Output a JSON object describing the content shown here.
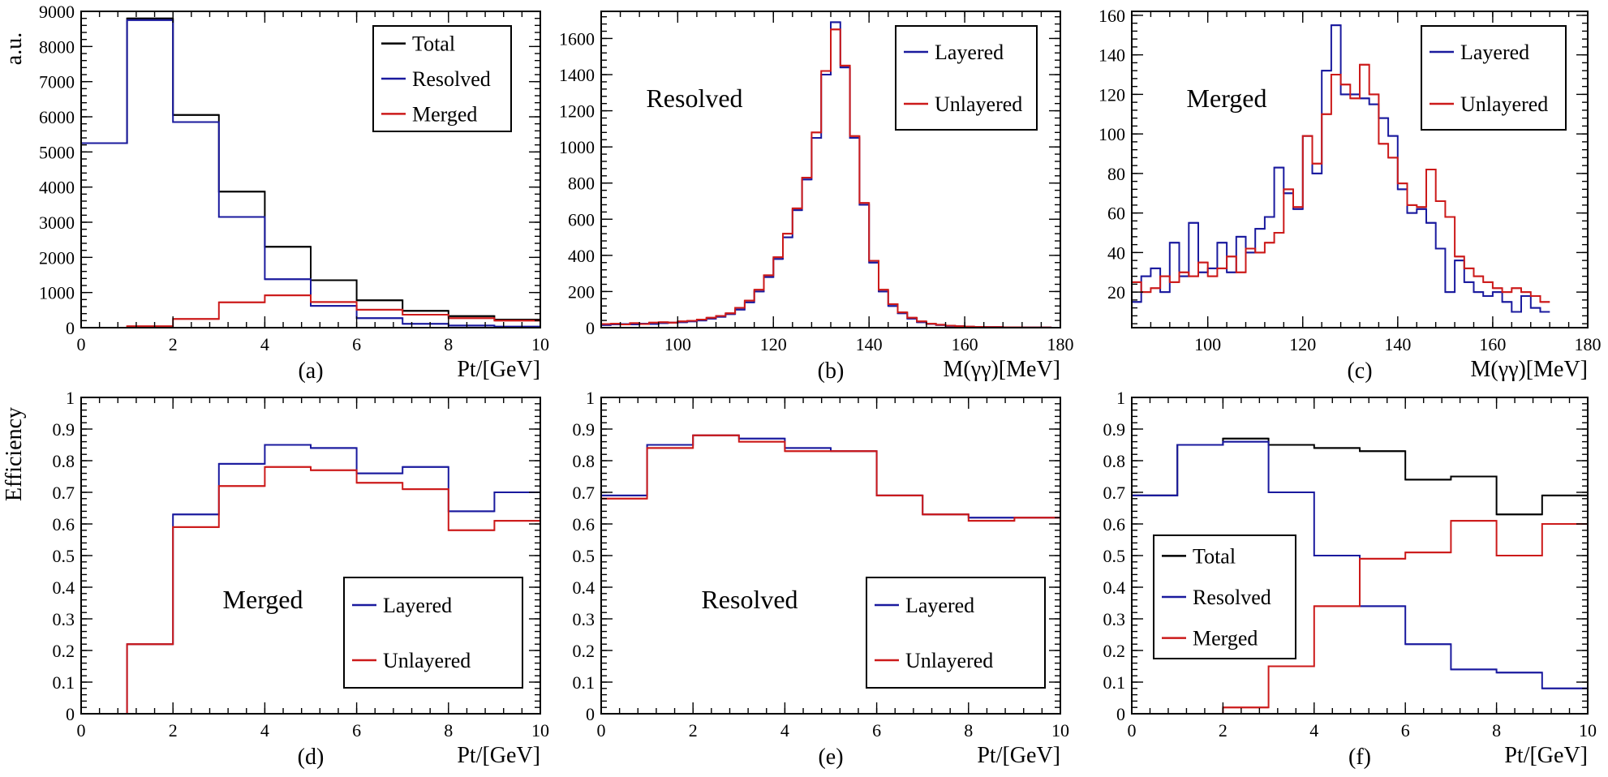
{
  "figure_ylabels": {
    "top": "a.u.",
    "bottom": "Efficiency"
  },
  "colors": {
    "total": "#000000",
    "resolved": "#1a1a9e",
    "merged": "#cc1a1a",
    "layered": "#1a1a9e",
    "unlayered": "#cc1a1a"
  },
  "chart_data": [
    {
      "id": "a",
      "type": "histogram",
      "panel_label": "(a)",
      "xlabel": "Pt/[GeV]",
      "ylabel": "a.u.",
      "xlim": [
        0,
        10
      ],
      "ylim": [
        0,
        9000
      ],
      "xticks": [
        0,
        2,
        4,
        6,
        8,
        10
      ],
      "xticklabels": [
        "0",
        "2",
        "4",
        "6",
        "8",
        "10"
      ],
      "yticks": [
        0,
        1000,
        2000,
        3000,
        4000,
        5000,
        6000,
        7000,
        8000,
        9000
      ],
      "yticklabels": [
        "0",
        "1000",
        "2000",
        "3000",
        "4000",
        "5000",
        "6000",
        "7000",
        "8000",
        "9000"
      ],
      "legend": {
        "position": "top-right"
      },
      "edges": [
        0,
        1,
        2,
        3,
        4,
        5,
        6,
        7,
        8,
        9,
        10
      ],
      "series": [
        {
          "name": "Total",
          "color_key": "total",
          "values": [
            5250,
            8800,
            6050,
            3870,
            2300,
            1350,
            780,
            480,
            330,
            230
          ]
        },
        {
          "name": "Resolved",
          "color_key": "resolved",
          "values": [
            5250,
            8750,
            5850,
            3150,
            1380,
            620,
            270,
            110,
            60,
            30
          ]
        },
        {
          "name": "Merged",
          "color_key": "merged",
          "values": [
            0,
            40,
            250,
            720,
            920,
            730,
            510,
            370,
            270,
            200
          ]
        }
      ]
    },
    {
      "id": "b",
      "type": "histogram",
      "panel_label": "(b)",
      "xlabel": "M(γγ)[MeV]",
      "inner_label": "Resolved",
      "xlim": [
        84,
        180
      ],
      "ylim": [
        0,
        1750
      ],
      "xticks": [
        100,
        120,
        140,
        160,
        180
      ],
      "xticklabels": [
        "100",
        "120",
        "140",
        "160",
        "180"
      ],
      "yticks": [
        0,
        200,
        400,
        600,
        800,
        1000,
        1200,
        1400,
        1600
      ],
      "yticklabels": [
        "0",
        "200",
        "400",
        "600",
        "800",
        "1000",
        "1200",
        "1400",
        "1600"
      ],
      "legend": {
        "position": "top-right"
      },
      "x_start": 84,
      "bin_width": 2,
      "series": [
        {
          "name": "Layered",
          "color_key": "layered",
          "values": [
            15,
            18,
            20,
            18,
            22,
            20,
            25,
            28,
            30,
            35,
            40,
            50,
            60,
            75,
            100,
            140,
            200,
            280,
            380,
            500,
            650,
            820,
            1050,
            1400,
            1690,
            1440,
            1050,
            680,
            360,
            200,
            120,
            80,
            50,
            30,
            20,
            15,
            10,
            8,
            5,
            4,
            3,
            3,
            2,
            2,
            1,
            1,
            1,
            0
          ]
        },
        {
          "name": "Unlayered",
          "color_key": "unlayered",
          "values": [
            20,
            22,
            18,
            25,
            20,
            28,
            30,
            28,
            35,
            38,
            45,
            55,
            65,
            80,
            110,
            150,
            210,
            290,
            390,
            520,
            660,
            830,
            1080,
            1420,
            1650,
            1450,
            1060,
            690,
            370,
            210,
            130,
            85,
            55,
            35,
            22,
            16,
            11,
            8,
            6,
            4,
            3,
            3,
            2,
            2,
            1,
            1,
            1,
            0
          ]
        }
      ]
    },
    {
      "id": "c",
      "type": "histogram",
      "panel_label": "(c)",
      "xlabel": "M(γγ)[MeV]",
      "inner_label": "Merged",
      "xlim": [
        84,
        180
      ],
      "ylim": [
        2,
        162
      ],
      "xticks": [
        100,
        120,
        140,
        160,
        180
      ],
      "xticklabels": [
        "100",
        "120",
        "140",
        "160",
        "180"
      ],
      "yticks": [
        20,
        40,
        60,
        80,
        100,
        120,
        140,
        160
      ],
      "yticklabels": [
        "20",
        "40",
        "60",
        "80",
        "100",
        "120",
        "140",
        "160"
      ],
      "legend": {
        "position": "top-right"
      },
      "x_start": 84,
      "bin_width": 2,
      "series": [
        {
          "name": "Layered",
          "color_key": "layered",
          "values": [
            15,
            28,
            32,
            20,
            45,
            28,
            55,
            30,
            32,
            45,
            30,
            48,
            40,
            52,
            58,
            83,
            70,
            62,
            99,
            80,
            132,
            155,
            120,
            120,
            118,
            115,
            108,
            99,
            72,
            60,
            62,
            55,
            42,
            20,
            36,
            25,
            20,
            18,
            20,
            15,
            10,
            18,
            12,
            10
          ]
        },
        {
          "name": "Unlayered",
          "color_key": "unlayered",
          "values": [
            25,
            20,
            22,
            28,
            25,
            30,
            28,
            35,
            28,
            32,
            38,
            30,
            42,
            40,
            45,
            50,
            72,
            63,
            99,
            85,
            110,
            130,
            125,
            118,
            135,
            120,
            95,
            88,
            75,
            64,
            63,
            82,
            66,
            58,
            38,
            32,
            28,
            25,
            22,
            20,
            22,
            20,
            18,
            15
          ]
        }
      ]
    },
    {
      "id": "d",
      "type": "histogram",
      "panel_label": "(d)",
      "xlabel": "Pt/[GeV]",
      "ylabel": "Efficiency",
      "inner_label": "Merged",
      "xlim": [
        0,
        10
      ],
      "ylim": [
        0,
        1
      ],
      "xticks": [
        0,
        2,
        4,
        6,
        8,
        10
      ],
      "xticklabels": [
        "0",
        "2",
        "4",
        "6",
        "8",
        "10"
      ],
      "yticks": [
        0,
        0.1,
        0.2,
        0.3,
        0.4,
        0.5,
        0.6,
        0.7,
        0.8,
        0.9,
        1
      ],
      "yticklabels": [
        "0",
        "0.1",
        "0.2",
        "0.3",
        "0.4",
        "0.5",
        "0.6",
        "0.7",
        "0.8",
        "0.9",
        "1"
      ],
      "legend": {
        "position": "bottom-right"
      },
      "edges": [
        0,
        1,
        2,
        3,
        4,
        5,
        6,
        7,
        8,
        9,
        10
      ],
      "series": [
        {
          "name": "Layered",
          "color_key": "layered",
          "values": [
            0,
            0.22,
            0.63,
            0.79,
            0.85,
            0.84,
            0.76,
            0.78,
            0.64,
            0.7
          ]
        },
        {
          "name": "Unlayered",
          "color_key": "unlayered",
          "values": [
            0,
            0.22,
            0.59,
            0.72,
            0.78,
            0.77,
            0.73,
            0.71,
            0.58,
            0.61
          ]
        }
      ]
    },
    {
      "id": "e",
      "type": "histogram",
      "panel_label": "(e)",
      "xlabel": "Pt/[GeV]",
      "inner_label": "Resolved",
      "xlim": [
        0,
        10
      ],
      "ylim": [
        0,
        1
      ],
      "xticks": [
        0,
        2,
        4,
        6,
        8,
        10
      ],
      "xticklabels": [
        "0",
        "2",
        "4",
        "6",
        "8",
        "10"
      ],
      "yticks": [
        0,
        0.1,
        0.2,
        0.3,
        0.4,
        0.5,
        0.6,
        0.7,
        0.8,
        0.9,
        1
      ],
      "yticklabels": [
        "0",
        "0.1",
        "0.2",
        "0.3",
        "0.4",
        "0.5",
        "0.6",
        "0.7",
        "0.8",
        "0.9",
        "1"
      ],
      "legend": {
        "position": "bottom-right"
      },
      "edges": [
        0,
        1,
        2,
        3,
        4,
        5,
        6,
        7,
        8,
        9,
        10
      ],
      "series": [
        {
          "name": "Layered",
          "color_key": "layered",
          "values": [
            0.69,
            0.85,
            0.88,
            0.87,
            0.84,
            0.83,
            0.69,
            0.63,
            0.62,
            0.62
          ]
        },
        {
          "name": "Unlayered",
          "color_key": "unlayered",
          "values": [
            0.68,
            0.84,
            0.88,
            0.86,
            0.83,
            0.83,
            0.69,
            0.63,
            0.61,
            0.62
          ]
        }
      ]
    },
    {
      "id": "f",
      "type": "histogram",
      "panel_label": "(f)",
      "xlabel": "Pt/[GeV]",
      "xlim": [
        0,
        10
      ],
      "ylim": [
        0,
        1
      ],
      "xticks": [
        0,
        2,
        4,
        6,
        8,
        10
      ],
      "xticklabels": [
        "0",
        "2",
        "4",
        "6",
        "8",
        "10"
      ],
      "yticks": [
        0,
        0.1,
        0.2,
        0.3,
        0.4,
        0.5,
        0.6,
        0.7,
        0.8,
        0.9,
        1
      ],
      "yticklabels": [
        "0",
        "0.1",
        "0.2",
        "0.3",
        "0.4",
        "0.5",
        "0.6",
        "0.7",
        "0.8",
        "0.9",
        "1"
      ],
      "legend": {
        "position": "bottom-left"
      },
      "edges": [
        0,
        1,
        2,
        3,
        4,
        5,
        6,
        7,
        8,
        9,
        10
      ],
      "series": [
        {
          "name": "Total",
          "color_key": "total",
          "values": [
            0.69,
            0.85,
            0.87,
            0.85,
            0.84,
            0.83,
            0.74,
            0.75,
            0.63,
            0.69
          ]
        },
        {
          "name": "Resolved",
          "color_key": "resolved",
          "values": [
            0.69,
            0.85,
            0.86,
            0.7,
            0.5,
            0.34,
            0.22,
            0.14,
            0.13,
            0.08
          ]
        },
        {
          "name": "Merged",
          "color_key": "merged",
          "values": [
            0,
            0,
            0.02,
            0.15,
            0.34,
            0.49,
            0.51,
            0.61,
            0.5,
            0.6
          ]
        }
      ]
    }
  ]
}
